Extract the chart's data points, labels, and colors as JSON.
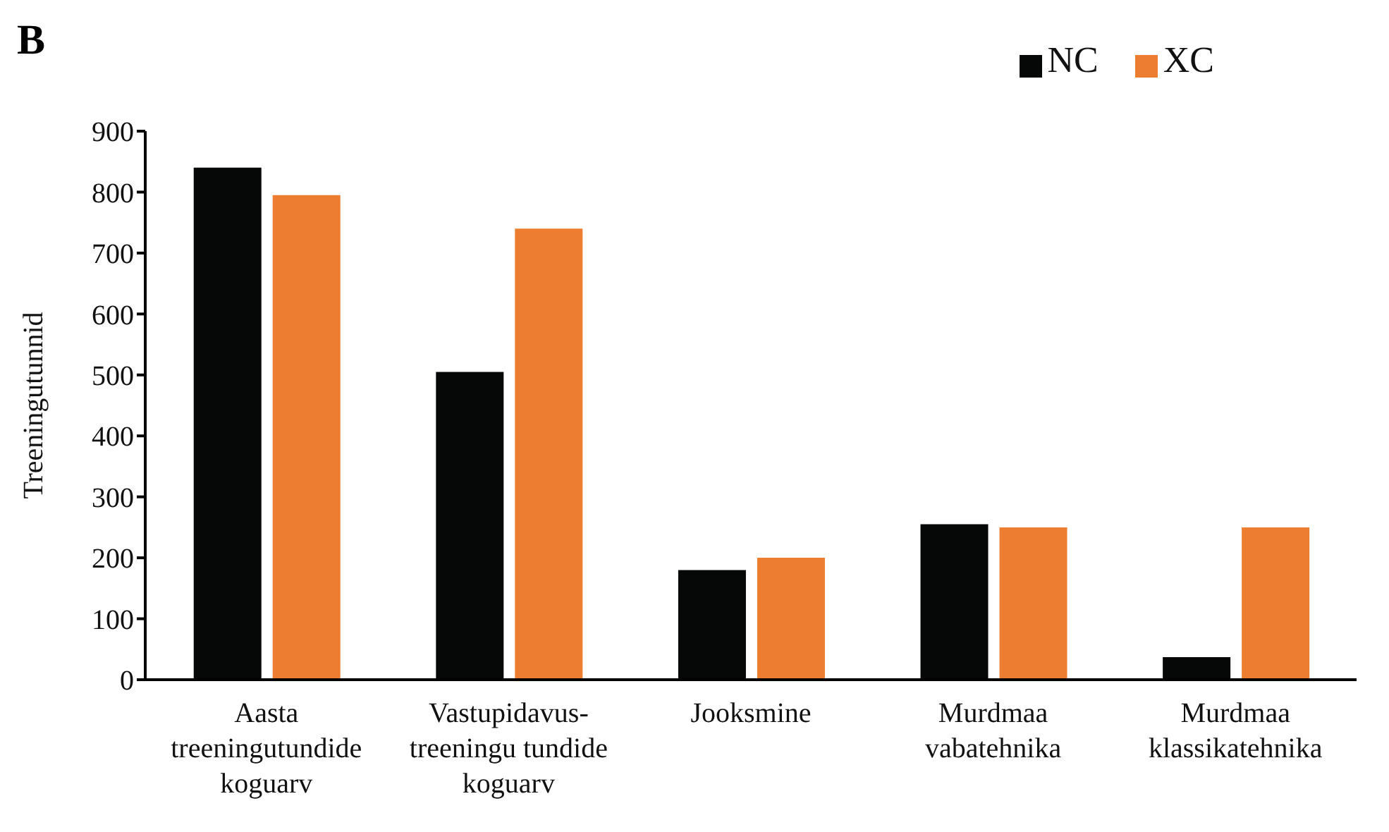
{
  "chart_data": {
    "type": "bar",
    "ylabel": "Treeningutunnid",
    "annotations": [
      "B"
    ],
    "categories": [
      "Aasta\ntreeningutundide\nkoguarv",
      "Vastupidavus-\ntreeningu tundide\nkoguarv",
      "Jooksmine",
      "Murdmaa\nvabatehnika",
      "Murdmaa\nklassikatehnika"
    ],
    "series": [
      {
        "name": "NC",
        "color": "#060807",
        "values": [
          840,
          505,
          180,
          255,
          37
        ]
      },
      {
        "name": "XC",
        "color": "#ed7d31",
        "values": [
          795,
          740,
          200,
          250,
          250
        ]
      }
    ],
    "ylim": [
      0,
      900
    ],
    "yticks": [
      0,
      100,
      200,
      300,
      400,
      500,
      600,
      700,
      800,
      900
    ],
    "grid": false,
    "legend": "top right"
  }
}
